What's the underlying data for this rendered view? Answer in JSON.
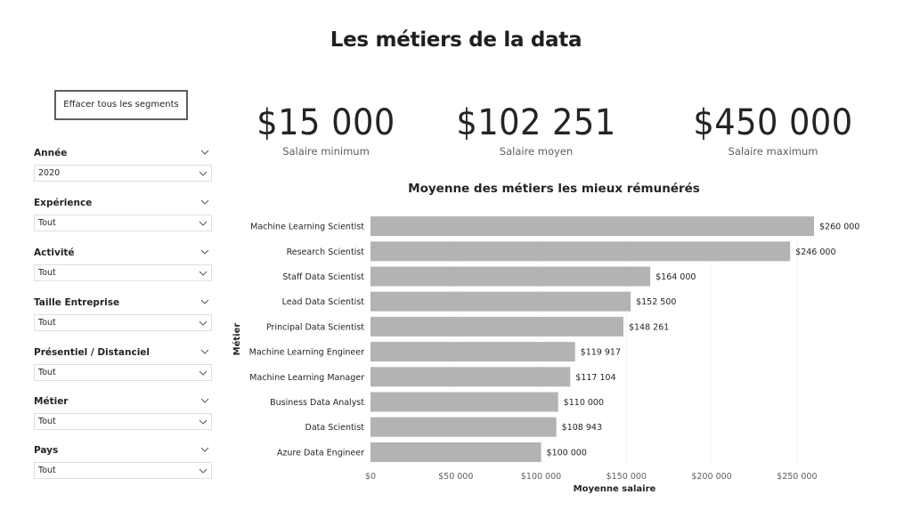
{
  "page": {
    "title": "Les métiers de la data",
    "clear_button": "Effacer tous les segments"
  },
  "slicers": [
    {
      "label": "Année",
      "value": "2020"
    },
    {
      "label": "Expérience",
      "value": "Tout"
    },
    {
      "label": "Activité",
      "value": "Tout"
    },
    {
      "label": "Taille Entreprise",
      "value": "Tout"
    },
    {
      "label": "Présentiel / Distanciel",
      "value": "Tout"
    },
    {
      "label": "Métier",
      "value": "Tout"
    },
    {
      "label": "Pays",
      "value": "Tout"
    }
  ],
  "kpis": [
    {
      "value": "$15 000",
      "label": "Salaire minimum"
    },
    {
      "value": "$102 251",
      "label": "Salaire moyen"
    },
    {
      "value": "$450 000",
      "label": "Salaire maximum"
    }
  ],
  "colors": {
    "bar": "#b3b3b3",
    "grid": "#e6e6e6",
    "text": "#252423",
    "muted": "#605e5c"
  },
  "chart_data": {
    "type": "bar",
    "orientation": "horizontal",
    "title": "Moyenne des métiers les mieux rémunérés",
    "xlabel": "Moyenne salaire",
    "ylabel": "Métier",
    "xlim": [
      0,
      260000
    ],
    "xticks": [
      0,
      50000,
      100000,
      150000,
      200000,
      250000
    ],
    "xtick_labels": [
      "$0",
      "$50 000",
      "$100 000",
      "$150 000",
      "$200 000",
      "$250 000"
    ],
    "grid": true,
    "categories": [
      "Machine Learning Scientist",
      "Research Scientist",
      "Staff Data Scientist",
      "Lead Data Scientist",
      "Principal Data Scientist",
      "Machine Learning Engineer",
      "Machine Learning Manager",
      "Business Data Analyst",
      "Data Scientist",
      "Azure Data Engineer"
    ],
    "values": [
      260000,
      246000,
      164000,
      152500,
      148261,
      119917,
      117104,
      110000,
      108943,
      100000
    ],
    "value_labels": [
      "$260 000",
      "$246 000",
      "$164 000",
      "$152 500",
      "$148 261",
      "$119 917",
      "$117 104",
      "$110 000",
      "$108 943",
      "$100 000"
    ]
  }
}
